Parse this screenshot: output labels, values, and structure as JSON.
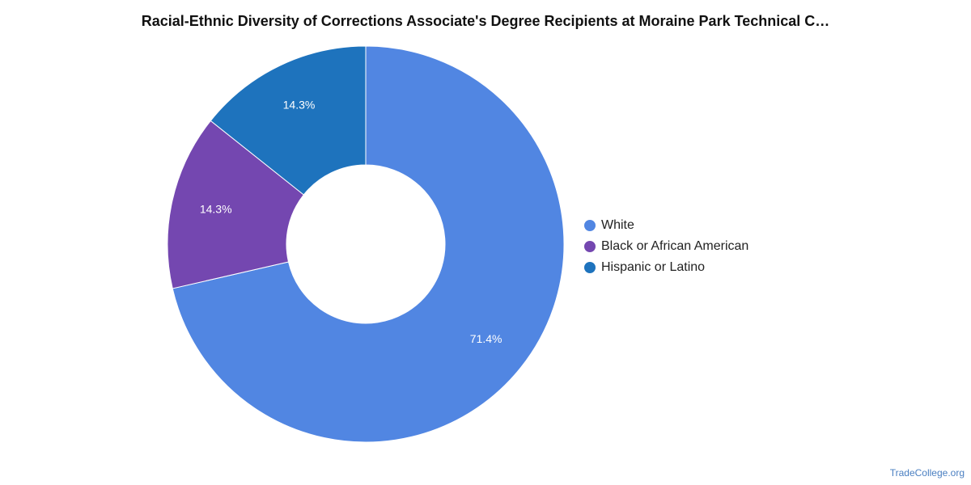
{
  "title": "Racial-Ethnic Diversity of Corrections Associate's Degree Recipients at Moraine Park Technical C…",
  "watermark": "TradeCollege.org",
  "chart_data": {
    "type": "pie",
    "donut": true,
    "title": "Racial-Ethnic Diversity of Corrections Associate's Degree Recipients at Moraine Park Technical C…",
    "legend_position": "right",
    "slices": [
      {
        "label": "White",
        "value": 71.4,
        "display": "71.4%",
        "color": "#5186e2"
      },
      {
        "label": "Black or African American",
        "value": 14.3,
        "display": "14.3%",
        "color": "#7447b0"
      },
      {
        "label": "Hispanic or Latino",
        "value": 14.3,
        "display": "14.3%",
        "color": "#1e73bd"
      }
    ]
  }
}
